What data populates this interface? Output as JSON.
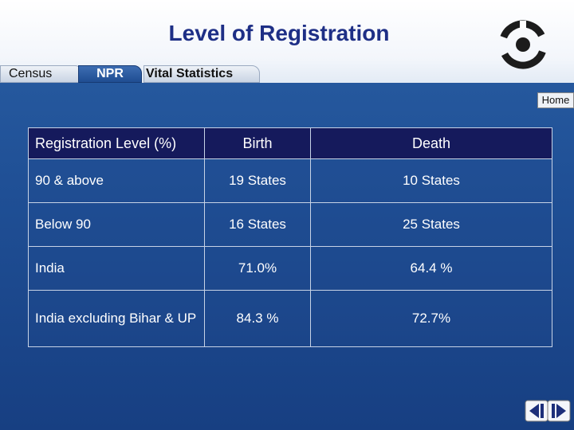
{
  "header": {
    "title": "Level of Registration"
  },
  "tabs": [
    {
      "label": "Census"
    },
    {
      "label": "NPR"
    },
    {
      "label": "Vital Statistics"
    }
  ],
  "home_label": "Home",
  "table": {
    "headers": [
      "Registration Level (%)",
      "Birth",
      "Death"
    ],
    "rows": [
      [
        "90  & above",
        "19 States",
        "10 States"
      ],
      [
        "Below  90",
        "16 States",
        "25 States"
      ],
      [
        "India",
        "71.0%",
        "64.4 %"
      ],
      [
        "India excluding Bihar & UP",
        "84.3 %",
        "72.7%"
      ]
    ]
  },
  "icons": {
    "logo": "census-logo",
    "prev": "previous-slide-icon",
    "next": "next-slide-icon"
  },
  "colors": {
    "title": "#1e2f86",
    "table_header": "#151a5c",
    "background": "#1f4f95"
  }
}
